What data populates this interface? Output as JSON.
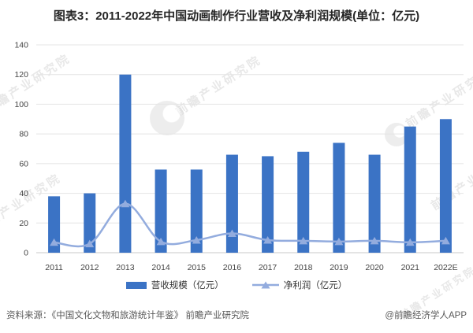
{
  "title": "图表3：2011-2022年中国动画制作行业营收及净利润规模(单位：亿元)",
  "chart_data": {
    "type": "bar+line",
    "title": "2011-2022年中国动画制作行业营收及净利润规模",
    "unit": "亿元",
    "categories": [
      "2011",
      "2012",
      "2013",
      "2014",
      "2015",
      "2016",
      "2017",
      "2018",
      "2019",
      "2020",
      "2021",
      "2022E"
    ],
    "series": [
      {
        "name": "营收规模（亿元）",
        "type": "bar",
        "color": "#3B73C5",
        "values": [
          38,
          40,
          120,
          56,
          56,
          66,
          65,
          68,
          74,
          66,
          85,
          90
        ]
      },
      {
        "name": "净利润（亿元）",
        "type": "line",
        "color": "#93ACDE",
        "values": [
          7,
          6,
          33,
          7.5,
          8.5,
          13,
          8.5,
          8,
          7.5,
          8,
          7,
          8
        ]
      }
    ],
    "xlabel": "",
    "ylabel": "",
    "ylim": [
      0,
      140
    ],
    "ytick_step": 20,
    "grid": true,
    "legend_position": "bottom"
  },
  "axis": {
    "tick_color": "#444444",
    "grid_color": "#e4e4e4",
    "baseline_color": "#c9c9c9"
  },
  "footer": {
    "source": "资料来源：《中国文化文物和旅游统计年鉴》 前瞻产业研究院",
    "credit": "@前瞻经济学人APP"
  },
  "watermark": {
    "text": "前瞻产业研究院"
  }
}
